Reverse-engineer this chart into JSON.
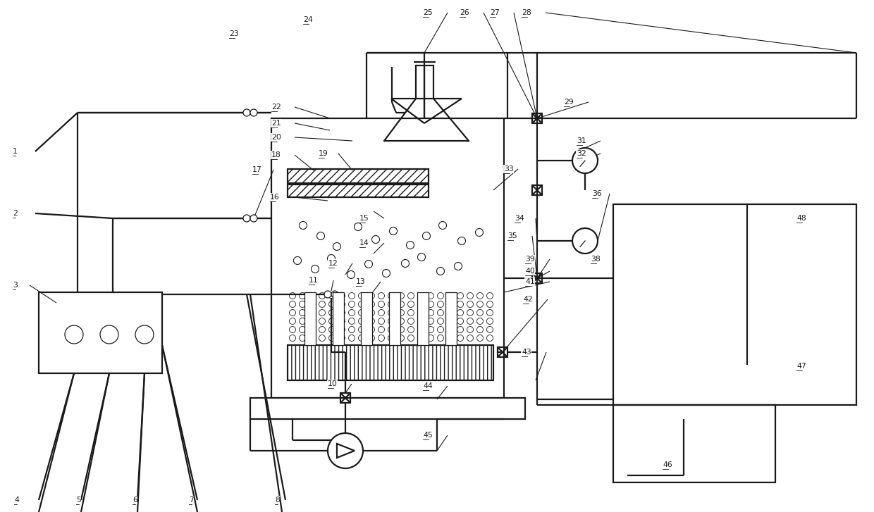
{
  "bg_color": "#ffffff",
  "lc": "#1a1a1a",
  "lw": 1.6,
  "lw_thin": 0.9,
  "fs": 7.8,
  "fig_w": 12.4,
  "fig_h": 7.27
}
